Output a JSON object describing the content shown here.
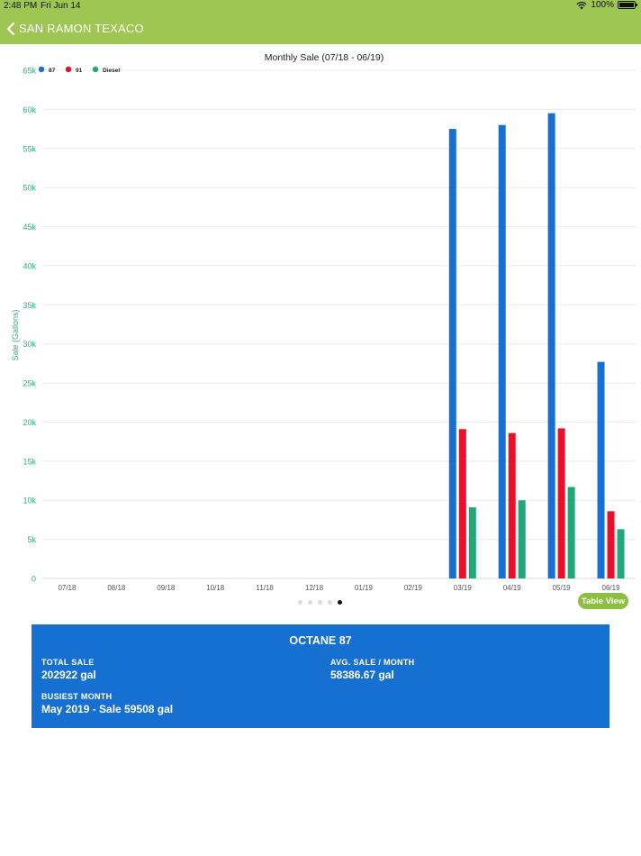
{
  "status_bar": {
    "time": "2:48 PM",
    "date": "Fri Jun 14",
    "battery": "100%"
  },
  "nav": {
    "back_label": "SAN RAMON TEXACO"
  },
  "chart_data": {
    "type": "bar",
    "title": "Monthly Sale (07/18 - 06/19)",
    "xlabel": "",
    "ylabel": "Sale (Gallons)",
    "ylim": [
      0,
      65000
    ],
    "ytick_labels": [
      "0",
      "5k",
      "10k",
      "15k",
      "20k",
      "25k",
      "30k",
      "35k",
      "40k",
      "45k",
      "50k",
      "55k",
      "60k",
      "65k"
    ],
    "ytick_values": [
      0,
      5000,
      10000,
      15000,
      20000,
      25000,
      30000,
      35000,
      40000,
      45000,
      50000,
      55000,
      60000,
      65000
    ],
    "categories": [
      "07/18",
      "08/18",
      "09/18",
      "10/18",
      "11/18",
      "12/18",
      "01/19",
      "02/19",
      "03/19",
      "04/19",
      "05/19",
      "06/19"
    ],
    "series": [
      {
        "name": "87",
        "color": "#1670d2",
        "values": [
          0,
          0,
          0,
          0,
          0,
          0,
          0,
          0,
          57500,
          58000,
          59508,
          27700
        ]
      },
      {
        "name": "91",
        "color": "#e8102a",
        "values": [
          0,
          0,
          0,
          0,
          0,
          0,
          0,
          0,
          19100,
          18600,
          19200,
          8600
        ]
      },
      {
        "name": "Diesel",
        "color": "#22a77a",
        "values": [
          0,
          0,
          0,
          0,
          0,
          0,
          0,
          0,
          9100,
          10000,
          11700,
          6300
        ]
      }
    ],
    "legend_position": "top-left",
    "grid": true,
    "axis_color": "#2fb37d"
  },
  "table_view_label": "Table View",
  "pager": {
    "count": 5,
    "active": 4
  },
  "summary": {
    "title": "OCTANE 87",
    "total_sale_label": "TOTAL SALE",
    "total_sale_value": "202922 gal",
    "avg_label": "AVG. SALE / MONTH",
    "avg_value": "58386.67 gal",
    "busiest_label": "BUSIEST MONTH",
    "busiest_value": "May 2019 - Sale 59508 gal"
  }
}
